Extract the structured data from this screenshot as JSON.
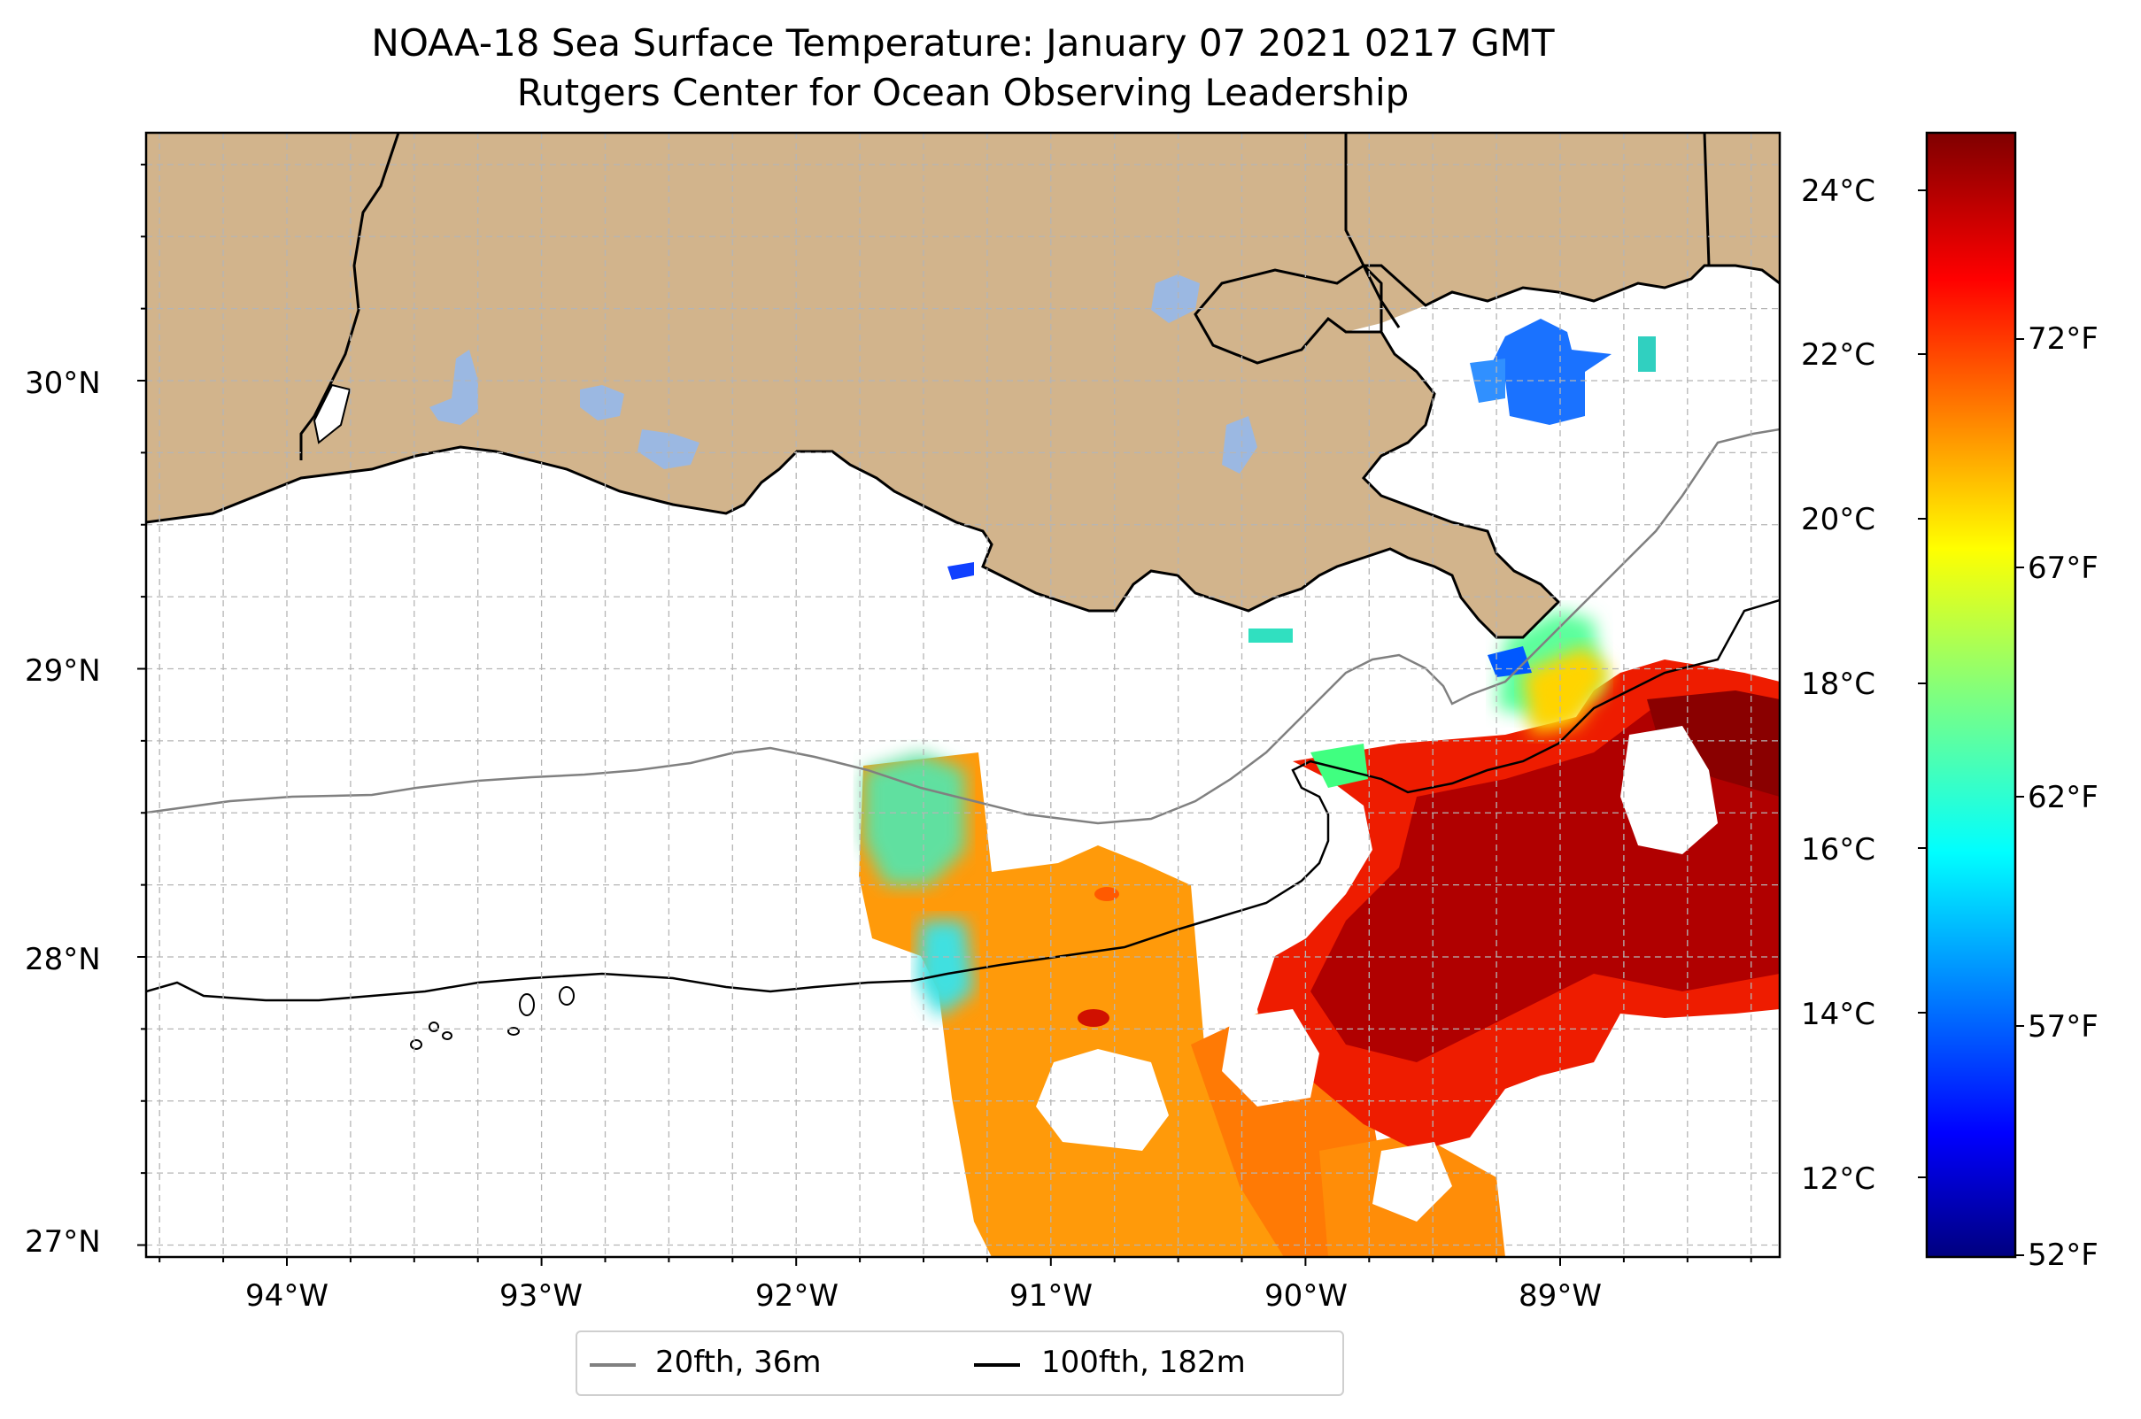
{
  "title": "NOAA-18 Sea Surface Temperature: January 07 2021 0217 GMT",
  "subtitle": "Rutgers Center for Ocean Observing Leadership",
  "lat_labels": [
    "30°N",
    "29°N",
    "28°N",
    "27°N"
  ],
  "lon_labels": [
    "94°W",
    "93°W",
    "92°W",
    "91°W",
    "90°W",
    "89°W"
  ],
  "colorbar": {
    "celsius_labels": [
      "24°C",
      "22°C",
      "20°C",
      "18°C",
      "16°C",
      "14°C",
      "12°C"
    ],
    "fahrenheit_labels": [
      "72°F",
      "67°F",
      "62°F",
      "57°F",
      "52°F"
    ],
    "colormap": "jet",
    "range_celsius": [
      11.1,
      24.8
    ]
  },
  "legend": {
    "items": [
      {
        "label": "20fth, 36m",
        "color": "#808080"
      },
      {
        "label": "100fth, 182m",
        "color": "#000000"
      }
    ]
  },
  "colors": {
    "land": "#d2b48c",
    "lakes": "#9bb8e2",
    "grid": "#b0b0b0"
  }
}
